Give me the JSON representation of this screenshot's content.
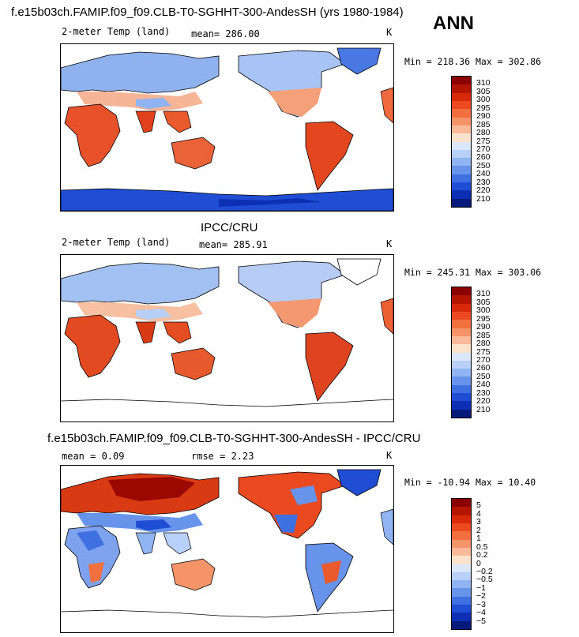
{
  "header": {
    "title": "f.e15b03ch.FAMIP.f09_f09.CLB-T0-SGHHT-300-AndesSH (yrs 1980-1984)",
    "season": "ANN"
  },
  "panels": [
    {
      "title": "",
      "variable": "2-meter Temp (land)",
      "stat1": "mean= 286.00",
      "stat2": "",
      "units": "K",
      "minmax": "Min = 218.36 Max = 302.86",
      "colorbar_labels": [
        "310",
        "305",
        "300",
        "295",
        "290",
        "285",
        "280",
        "275",
        "270",
        "260",
        "250",
        "240",
        "230",
        "220",
        "210"
      ],
      "colorbar_colors": [
        "#8b0000",
        "#b41500",
        "#d82a0a",
        "#eb4a20",
        "#f27040",
        "#f59468",
        "#f8ba98",
        "#fbe2cc",
        "#dbe8fb",
        "#b8cff7",
        "#90b3f2",
        "#6893eb",
        "#3f70e1",
        "#1f4ed4",
        "#0d2fb4",
        "#051a7a"
      ],
      "palette": "temp"
    },
    {
      "title": "IPCC/CRU",
      "variable": "2-meter Temp (land)",
      "stat1": "mean= 285.91",
      "stat2": "",
      "units": "K",
      "minmax": "Min = 245.31 Max = 303.06",
      "colorbar_labels": [
        "310",
        "305",
        "300",
        "295",
        "290",
        "285",
        "280",
        "275",
        "270",
        "260",
        "250",
        "240",
        "230",
        "220",
        "210"
      ],
      "colorbar_colors": [
        "#8b0000",
        "#b41500",
        "#d82a0a",
        "#eb4a20",
        "#f27040",
        "#f59468",
        "#f8ba98",
        "#fbe2cc",
        "#dbe8fb",
        "#b8cff7",
        "#90b3f2",
        "#6893eb",
        "#3f70e1",
        "#1f4ed4",
        "#0d2fb4",
        "#051a7a"
      ],
      "palette": "temp"
    },
    {
      "title": "f.e15b03ch.FAMIP.f09_f09.CLB-T0-SGHHT-300-AndesSH - IPCC/CRU",
      "variable": "",
      "stat1": "mean =   0.09",
      "stat2": "rmse =    2.23",
      "units": "K",
      "minmax": "Min = -10.94 Max =  10.40",
      "colorbar_labels": [
        "5",
        "4",
        "3",
        "2",
        "1",
        "0.5",
        "0.2",
        "0",
        "-0.2",
        "-0.5",
        "-1",
        "-2",
        "-3",
        "-4",
        "-5"
      ],
      "colorbar_colors": [
        "#8b0000",
        "#b41500",
        "#d82a0a",
        "#eb4a20",
        "#f27040",
        "#f59468",
        "#f8ba98",
        "#fbe2cc",
        "#dbe8fb",
        "#b8cff7",
        "#90b3f2",
        "#6893eb",
        "#3f70e1",
        "#1f4ed4",
        "#0d2fb4",
        "#051a7a"
      ],
      "palette": "diff"
    }
  ]
}
